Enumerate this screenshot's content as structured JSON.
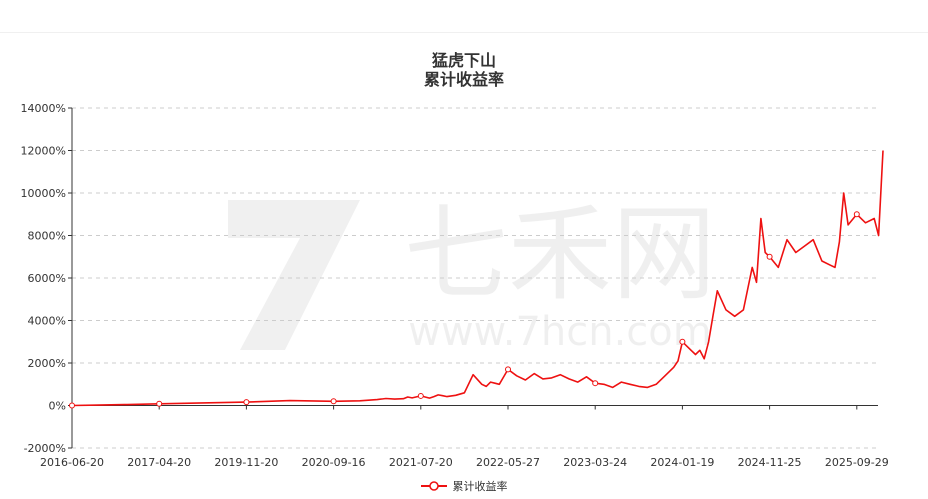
{
  "chart_data": {
    "type": "line",
    "title": "猛虎下山",
    "subtitle": "累计收益率",
    "ylim": [
      -2000,
      14000
    ],
    "y_ticks": [
      -2000,
      0,
      2000,
      4000,
      6000,
      8000,
      10000,
      12000,
      14000
    ],
    "y_tick_labels": [
      "-2000%",
      "0%",
      "2000%",
      "4000%",
      "6000%",
      "8000%",
      "10000%",
      "12000%",
      "14000%"
    ],
    "x_tick_labels": [
      "2016-06-20",
      "2017-04-20",
      "2019-11-20",
      "2020-09-16",
      "2021-07-20",
      "2022-05-27",
      "2023-03-24",
      "2024-01-19",
      "2024-11-25",
      "2025-09-29"
    ],
    "grid": true,
    "legend_position": "bottom",
    "series": [
      {
        "name": "累计收益率",
        "color": "#ee1111",
        "x_index": [
          0,
          0.3,
          0.6,
          1.0,
          1.5,
          2.0,
          2.5,
          3.0,
          3.3,
          3.5,
          3.6,
          3.7,
          3.8,
          3.85,
          3.9,
          4.0,
          4.1,
          4.15,
          4.2,
          4.25,
          4.3,
          4.4,
          4.5,
          4.6,
          4.7,
          4.75,
          4.8,
          4.85,
          4.9,
          5.0,
          5.1,
          5.2,
          5.3,
          5.4,
          5.5,
          5.6,
          5.7,
          5.8,
          5.9,
          6.0,
          6.1,
          6.2,
          6.3,
          6.4,
          6.5,
          6.6,
          6.7,
          6.8,
          6.9,
          6.95,
          7.0,
          7.1,
          7.15,
          7.2,
          7.25,
          7.3,
          7.35,
          7.4,
          7.5,
          7.6,
          7.7,
          7.75,
          7.8,
          7.85,
          7.9,
          7.95,
          8.0,
          8.1,
          8.2,
          8.3,
          8.4,
          8.5,
          8.6,
          8.7,
          8.75,
          8.8,
          8.85,
          8.9,
          9.0,
          9.1,
          9.2,
          9.25,
          9.3
        ],
        "values": [
          0,
          20,
          40,
          80,
          120,
          160,
          230,
          200,
          220,
          280,
          330,
          300,
          320,
          400,
          360,
          450,
          350,
          420,
          500,
          460,
          420,
          480,
          600,
          1450,
          1000,
          900,
          1100,
          1050,
          1000,
          1700,
          1400,
          1200,
          1500,
          1250,
          1300,
          1450,
          1250,
          1100,
          1350,
          1050,
          1000,
          850,
          1100,
          1000,
          900,
          850,
          1000,
          1400,
          1800,
          2100,
          3000,
          2600,
          2400,
          2600,
          2200,
          3000,
          4200,
          5400,
          4500,
          4200,
          4500,
          5500,
          6500,
          5800,
          8800,
          7200,
          7000,
          6500,
          7800,
          7200,
          7500,
          7800,
          6800,
          6600,
          6500,
          7700,
          10000,
          8500,
          9000,
          8600,
          8800,
          8000,
          12000
        ]
      }
    ],
    "markers": [
      {
        "x_index": 0,
        "value": 0
      },
      {
        "x_index": 1,
        "value": 80
      },
      {
        "x_index": 2,
        "value": 160
      },
      {
        "x_index": 3,
        "value": 200
      },
      {
        "x_index": 4,
        "value": 450
      },
      {
        "x_index": 5,
        "value": 1700
      },
      {
        "x_index": 6,
        "value": 1050
      },
      {
        "x_index": 7,
        "value": 3000
      },
      {
        "x_index": 8,
        "value": 7000
      },
      {
        "x_index": 9,
        "value": 9000
      }
    ]
  },
  "watermark": {
    "text": "七禾网",
    "url": "www.7hcn.com"
  },
  "legend": {
    "label": "累计收益率"
  }
}
